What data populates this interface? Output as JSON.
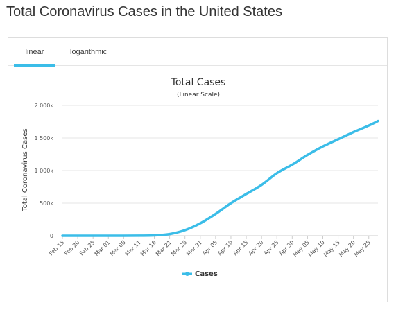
{
  "page": {
    "title": "Total Coronavirus Cases in the United States"
  },
  "tabs": [
    {
      "label": "linear",
      "active": true
    },
    {
      "label": "logarithmic",
      "active": false
    }
  ],
  "colors": {
    "series": "#3bbde8",
    "grid": "#e6e6e6",
    "active_tab": "#3bbde8"
  },
  "chart_data": {
    "type": "line",
    "title": "Total Cases",
    "subtitle": "(Linear Scale)",
    "xlabel": "",
    "ylabel": "Total Coronavirus Cases",
    "ylim": [
      0,
      2000000
    ],
    "yticks": [
      {
        "value": 0,
        "label": "0"
      },
      {
        "value": 500000,
        "label": "500k"
      },
      {
        "value": 1000000,
        "label": "1 000k"
      },
      {
        "value": 1500000,
        "label": "1 500k"
      },
      {
        "value": 2000000,
        "label": "2 000k"
      }
    ],
    "xlim": [
      "2020-02-15",
      "2020-05-28"
    ],
    "xticks": [
      "Feb 15",
      "Feb 20",
      "Feb 25",
      "Mar 01",
      "Mar 06",
      "Mar 11",
      "Mar 16",
      "Mar 21",
      "Mar 26",
      "Mar 31",
      "Apr 05",
      "Apr 10",
      "Apr 15",
      "Apr 20",
      "Apr 25",
      "Apr 30",
      "May 05",
      "May 10",
      "May 15",
      "May 20",
      "May 25"
    ],
    "xtick_dates": [
      "2020-02-15",
      "2020-02-20",
      "2020-02-25",
      "2020-03-01",
      "2020-03-06",
      "2020-03-11",
      "2020-03-16",
      "2020-03-21",
      "2020-03-26",
      "2020-03-31",
      "2020-04-05",
      "2020-04-10",
      "2020-04-15",
      "2020-04-20",
      "2020-04-25",
      "2020-04-30",
      "2020-05-05",
      "2020-05-10",
      "2020-05-15",
      "2020-05-20",
      "2020-05-25"
    ],
    "grid": true,
    "legend": "bottom-center",
    "series": [
      {
        "name": "Cases",
        "points": [
          {
            "x": "2020-02-15",
            "y": 15
          },
          {
            "x": "2020-02-20",
            "y": 15
          },
          {
            "x": "2020-02-25",
            "y": 57
          },
          {
            "x": "2020-03-01",
            "y": 75
          },
          {
            "x": "2020-03-06",
            "y": 300
          },
          {
            "x": "2020-03-11",
            "y": 1300
          },
          {
            "x": "2020-03-16",
            "y": 5000
          },
          {
            "x": "2020-03-21",
            "y": 26000
          },
          {
            "x": "2020-03-26",
            "y": 85000
          },
          {
            "x": "2020-03-31",
            "y": 190000
          },
          {
            "x": "2020-04-05",
            "y": 335000
          },
          {
            "x": "2020-04-10",
            "y": 500000
          },
          {
            "x": "2020-04-15",
            "y": 640000
          },
          {
            "x": "2020-04-20",
            "y": 780000
          },
          {
            "x": "2020-04-25",
            "y": 960000
          },
          {
            "x": "2020-04-30",
            "y": 1090000
          },
          {
            "x": "2020-05-05",
            "y": 1240000
          },
          {
            "x": "2020-05-10",
            "y": 1370000
          },
          {
            "x": "2020-05-15",
            "y": 1480000
          },
          {
            "x": "2020-05-20",
            "y": 1590000
          },
          {
            "x": "2020-05-25",
            "y": 1690000
          },
          {
            "x": "2020-05-28",
            "y": 1760000
          }
        ]
      }
    ]
  }
}
